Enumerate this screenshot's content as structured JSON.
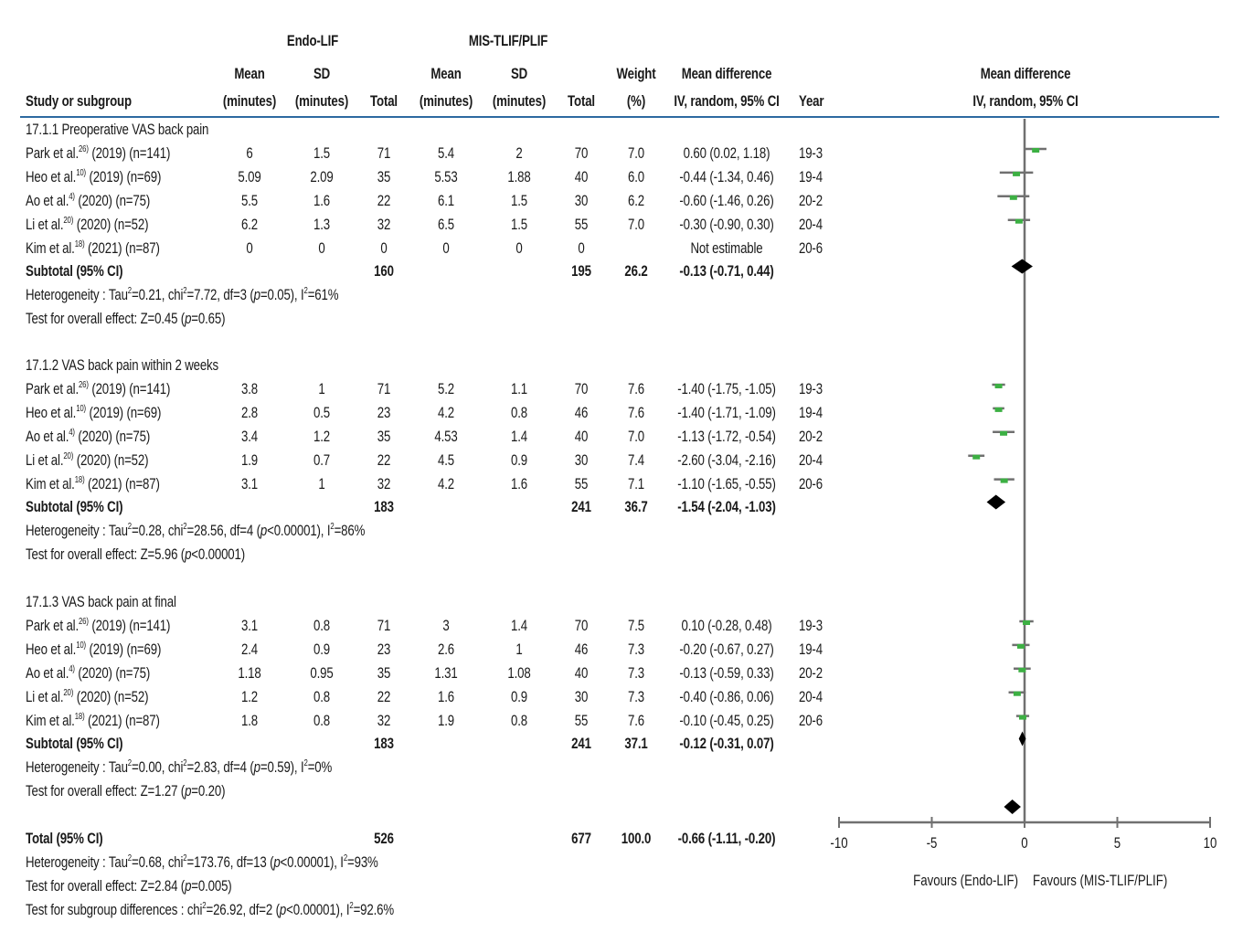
{
  "header": {
    "group1": "Endo-LIF",
    "group2": "MIS-TLIF/PLIF",
    "col_study": "Study or subgroup",
    "col_mean_line1": "Mean",
    "col_mean_line2": "(minutes)",
    "col_sd_line1": "SD",
    "col_sd_line2": "(minutes)",
    "col_total": "Total",
    "col_weight_line1": "Weight",
    "col_weight_line2": "(%)",
    "col_md_line1": "Mean difference",
    "col_md_line2": "IV, random, 95% CI",
    "col_year": "Year",
    "plot_title_line1": "Mean difference",
    "plot_title_line2": "IV, random, 95% CI"
  },
  "subgroups": [
    {
      "title": "17.1.1 Preoperative VAS back pain",
      "rows": [
        {
          "author": "Park et al.",
          "ref": "26)",
          "rest": " (2019) (n=141)",
          "m1": "6",
          "sd1": "1.5",
          "n1": "71",
          "m2": "5.4",
          "sd2": "2",
          "n2": "70",
          "w": "7.0",
          "md": "0.60 (0.02, 1.18)",
          "year": "19-3"
        },
        {
          "author": "Heo et al.",
          "ref": "10)",
          "rest": " (2019) (n=69)",
          "m1": "5.09",
          "sd1": "2.09",
          "n1": "35",
          "m2": "5.53",
          "sd2": "1.88",
          "n2": "40",
          "w": "6.0",
          "md": "-0.44 (-1.34, 0.46)",
          "year": "19-4"
        },
        {
          "author": "Ao et al.",
          "ref": "4)",
          "rest": " (2020) (n=75)",
          "m1": "5.5",
          "sd1": "1.6",
          "n1": "22",
          "m2": "6.1",
          "sd2": "1.5",
          "n2": "30",
          "w": "6.2",
          "md": "-0.60 (-1.46, 0.26)",
          "year": "20-2"
        },
        {
          "author": "Li et al.",
          "ref": "20)",
          "rest": " (2020) (n=52)",
          "m1": "6.2",
          "sd1": "1.3",
          "n1": "32",
          "m2": "6.5",
          "sd2": "1.5",
          "n2": "55",
          "w": "7.0",
          "md": "-0.30 (-0.90, 0.30)",
          "year": "20-4"
        },
        {
          "author": "Kim et al.",
          "ref": "18)",
          "rest": " (2021) (n=87)",
          "m1": "0",
          "sd1": "0",
          "n1": "0",
          "m2": "0",
          "sd2": "0",
          "n2": "0",
          "w": "",
          "md": "Not estimable",
          "year": "20-6"
        }
      ],
      "subtotal_label": "Subtotal (95% CI)",
      "subtotal_n1": "160",
      "subtotal_n2": "195",
      "subtotal_w": "26.2",
      "subtotal_md": "-0.13 (-0.71, 0.44)",
      "het_prefix": "Heterogeneity : Tau",
      "het_a": "=0.21, chi",
      "het_b": "=7.72, df=3 (",
      "het_p": "p",
      "het_c": "=0.05), I",
      "het_d": "=61%",
      "effect_prefix": "Test for overall effect: Z=0.45 (",
      "effect_p": "p",
      "effect_suffix": "=0.65)"
    },
    {
      "title": "17.1.2 VAS back pain within 2 weeks",
      "rows": [
        {
          "author": "Park et al.",
          "ref": "26)",
          "rest": " (2019) (n=141)",
          "m1": "3.8",
          "sd1": "1",
          "n1": "71",
          "m2": "5.2",
          "sd2": "1.1",
          "n2": "70",
          "w": "7.6",
          "md": "-1.40 (-1.75, -1.05)",
          "year": "19-3"
        },
        {
          "author": "Heo et al.",
          "ref": "10)",
          "rest": " (2019) (n=69)",
          "m1": "2.8",
          "sd1": "0.5",
          "n1": "23",
          "m2": "4.2",
          "sd2": "0.8",
          "n2": "46",
          "w": "7.6",
          "md": "-1.40 (-1.71, -1.09)",
          "year": "19-4"
        },
        {
          "author": "Ao et al.",
          "ref": "4)",
          "rest": " (2020) (n=75)",
          "m1": "3.4",
          "sd1": "1.2",
          "n1": "35",
          "m2": "4.53",
          "sd2": "1.4",
          "n2": "40",
          "w": "7.0",
          "md": "-1.13 (-1.72, -0.54)",
          "year": "20-2"
        },
        {
          "author": "Li et al.",
          "ref": "20)",
          "rest": " (2020) (n=52)",
          "m1": "1.9",
          "sd1": "0.7",
          "n1": "22",
          "m2": "4.5",
          "sd2": "0.9",
          "n2": "30",
          "w": "7.4",
          "md": "-2.60 (-3.04, -2.16)",
          "year": "20-4"
        },
        {
          "author": "Kim et al.",
          "ref": "18)",
          "rest": " (2021) (n=87)",
          "m1": "3.1",
          "sd1": "1",
          "n1": "32",
          "m2": "4.2",
          "sd2": "1.6",
          "n2": "55",
          "w": "7.1",
          "md": "-1.10 (-1.65, -0.55)",
          "year": "20-6"
        }
      ],
      "subtotal_label": "Subtotal (95% CI)",
      "subtotal_n1": "183",
      "subtotal_n2": "241",
      "subtotal_w": "36.7",
      "subtotal_md": "-1.54 (-2.04, -1.03)",
      "het_prefix": "Heterogeneity : Tau",
      "het_a": "=0.28, chi",
      "het_b": "=28.56, df=4 (",
      "het_p": "p",
      "het_c": "<0.00001), I",
      "het_d": "=86%",
      "effect_prefix": "Test for overall effect: Z=5.96 (",
      "effect_p": "p",
      "effect_suffix": "<0.00001)"
    },
    {
      "title": "17.1.3 VAS back pain at final",
      "rows": [
        {
          "author": "Park et al.",
          "ref": "26)",
          "rest": " (2019) (n=141)",
          "m1": "3.1",
          "sd1": "0.8",
          "n1": "71",
          "m2": "3",
          "sd2": "1.4",
          "n2": "70",
          "w": "7.5",
          "md": "0.10 (-0.28, 0.48)",
          "year": "19-3"
        },
        {
          "author": "Heo et al.",
          "ref": "10)",
          "rest": " (2019) (n=69)",
          "m1": "2.4",
          "sd1": "0.9",
          "n1": "23",
          "m2": "2.6",
          "sd2": "1",
          "n2": "46",
          "w": "7.3",
          "md": "-0.20 (-0.67, 0.27)",
          "year": "19-4"
        },
        {
          "author": "Ao et al.",
          "ref": "4)",
          "rest": " (2020) (n=75)",
          "m1": "1.18",
          "sd1": "0.95",
          "n1": "35",
          "m2": "1.31",
          "sd2": "1.08",
          "n2": "40",
          "w": "7.3",
          "md": "-0.13 (-0.59, 0.33)",
          "year": "20-2"
        },
        {
          "author": "Li et al.",
          "ref": "20)",
          "rest": " (2020) (n=52)",
          "m1": "1.2",
          "sd1": "0.8",
          "n1": "22",
          "m2": "1.6",
          "sd2": "0.9",
          "n2": "30",
          "w": "7.3",
          "md": "-0.40 (-0.86, 0.06)",
          "year": "20-4"
        },
        {
          "author": "Kim et al.",
          "ref": "18)",
          "rest": " (2021) (n=87)",
          "m1": "1.8",
          "sd1": "0.8",
          "n1": "32",
          "m2": "1.9",
          "sd2": "0.8",
          "n2": "55",
          "w": "7.6",
          "md": "-0.10 (-0.45, 0.25)",
          "year": "20-6"
        }
      ],
      "subtotal_label": "Subtotal (95% CI)",
      "subtotal_n1": "183",
      "subtotal_n2": "241",
      "subtotal_w": "37.1",
      "subtotal_md": "-0.12 (-0.31, 0.07)",
      "het_prefix": "Heterogeneity : Tau",
      "het_a": "=0.00, chi",
      "het_b": "=2.83, df=4 (",
      "het_p": "p",
      "het_c": "=0.59), I",
      "het_d": "=0%",
      "effect_prefix": "Test for overall effect: Z=1.27 (",
      "effect_p": "p",
      "effect_suffix": "=0.20)"
    }
  ],
  "total": {
    "label": "Total (95% CI)",
    "n1": "526",
    "n2": "677",
    "w": "100.0",
    "md": "-0.66 (-1.11, -0.20)",
    "het_prefix": "Heterogeneity : Tau",
    "het_a": "=0.68, chi",
    "het_b": "=173.76, df=13 (",
    "het_p": "p",
    "het_c": "<0.00001), I",
    "het_d": "=93%",
    "effect_prefix": "Test for overall effect: Z=2.84 (",
    "effect_p": "p",
    "effect_suffix": "=0.005)",
    "subgroup_prefix": "Test for subgroup differences : chi",
    "subgroup_a": "=26.92, df=2 (",
    "subgroup_p": "p",
    "subgroup_b": "<0.00001), I",
    "subgroup_c": "=92.6%",
    "sup2": "2"
  },
  "chart_data": {
    "type": "forest",
    "title": "Mean difference IV, random, 95% CI",
    "xlabel_left": "Favours (Endo-LIF)",
    "xlabel_right": "Favours (MIS-TLIF/PLIF)",
    "xlim": [
      -10,
      10
    ],
    "xticks": [
      -10,
      -5,
      0,
      5,
      10
    ],
    "xtick_labels": [
      "-10",
      "-5",
      "0",
      "5",
      "10"
    ],
    "colors": {
      "study_marker": "#3cb043",
      "ci_line": "#707070",
      "diamond": "#000000",
      "axis": "#707070",
      "header_rule": "#2d6aa0"
    },
    "studies": [
      {
        "group": 0,
        "row": 0,
        "md": 0.6,
        "lo": 0.02,
        "hi": 1.18
      },
      {
        "group": 0,
        "row": 1,
        "md": -0.44,
        "lo": -1.34,
        "hi": 0.46
      },
      {
        "group": 0,
        "row": 2,
        "md": -0.6,
        "lo": -1.46,
        "hi": 0.26
      },
      {
        "group": 0,
        "row": 3,
        "md": -0.3,
        "lo": -0.9,
        "hi": 0.3
      },
      {
        "group": 1,
        "row": 0,
        "md": -1.4,
        "lo": -1.75,
        "hi": -1.05
      },
      {
        "group": 1,
        "row": 1,
        "md": -1.4,
        "lo": -1.71,
        "hi": -1.09
      },
      {
        "group": 1,
        "row": 2,
        "md": -1.13,
        "lo": -1.72,
        "hi": -0.54
      },
      {
        "group": 1,
        "row": 3,
        "md": -2.6,
        "lo": -3.04,
        "hi": -2.16
      },
      {
        "group": 1,
        "row": 4,
        "md": -1.1,
        "lo": -1.65,
        "hi": -0.55
      },
      {
        "group": 2,
        "row": 0,
        "md": 0.1,
        "lo": -0.28,
        "hi": 0.48
      },
      {
        "group": 2,
        "row": 1,
        "md": -0.2,
        "lo": -0.67,
        "hi": 0.27
      },
      {
        "group": 2,
        "row": 2,
        "md": -0.13,
        "lo": -0.59,
        "hi": 0.33
      },
      {
        "group": 2,
        "row": 3,
        "md": -0.4,
        "lo": -0.86,
        "hi": 0.06
      },
      {
        "group": 2,
        "row": 4,
        "md": -0.1,
        "lo": -0.45,
        "hi": 0.25
      }
    ],
    "subtotals": [
      {
        "group": 0,
        "md": -0.13,
        "lo": -0.71,
        "hi": 0.44
      },
      {
        "group": 1,
        "md": -1.54,
        "lo": -2.04,
        "hi": -1.03
      },
      {
        "group": 2,
        "md": -0.12,
        "lo": -0.31,
        "hi": 0.07
      }
    ],
    "overall": {
      "md": -0.66,
      "lo": -1.11,
      "hi": -0.2
    }
  }
}
